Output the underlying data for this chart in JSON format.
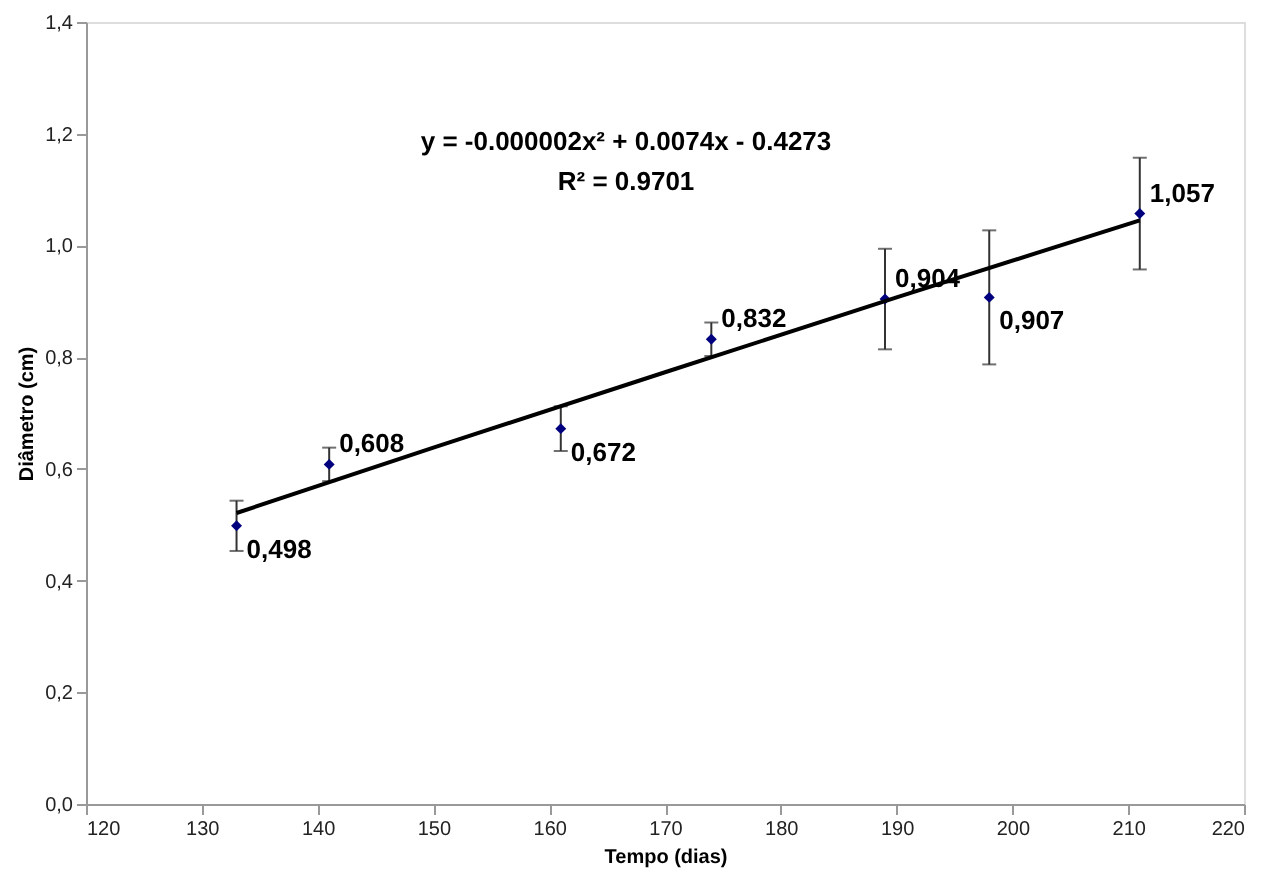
{
  "chart_data": {
    "type": "scatter",
    "xlabel": "Tempo (dias)",
    "ylabel": "Diâmetro (cm)",
    "annotations": [
      "y = -0.000002x² + 0.0074x - 0.4273",
      "R² = 0.9701"
    ],
    "xlim": [
      120,
      220
    ],
    "xticks": [
      120,
      130,
      140,
      150,
      160,
      170,
      180,
      190,
      200,
      210,
      220
    ],
    "ylim": [
      0,
      1.4
    ],
    "yticks": [
      {
        "value": 0,
        "label": "0,0"
      },
      {
        "value": 0.2,
        "label": "0,2"
      },
      {
        "value": 0.4,
        "label": "0,4"
      },
      {
        "value": 0.6,
        "label": "0,6"
      },
      {
        "value": 0.8,
        "label": "0,8"
      },
      {
        "value": 1.0,
        "label": "1,0"
      },
      {
        "value": 1.2,
        "label": "1,2"
      },
      {
        "value": 1.4,
        "label": "1,4"
      }
    ],
    "grid": false,
    "series": [
      {
        "color": "#00007f",
        "marker": "diamond",
        "x": [
          133,
          141,
          161,
          174,
          189,
          198,
          211
        ],
        "values": [
          0.498,
          0.608,
          0.672,
          0.832,
          0.904,
          0.907,
          1.057
        ],
        "errors": [
          0.045,
          0.03,
          0.04,
          0.03,
          0.09,
          0.12,
          0.1
        ],
        "value_labels": [
          "0,498",
          "0,608",
          "0,672",
          "0,832",
          "0,904",
          "0,907",
          "1,057"
        ]
      },
      {
        "type": "line",
        "color": "#000000",
        "line_style": "solid",
        "marker": "none",
        "x": [
          133,
          150,
          170,
          190,
          211
        ],
        "values": [
          0.521,
          0.638,
          0.773,
          0.907,
          1.045
        ]
      }
    ]
  }
}
